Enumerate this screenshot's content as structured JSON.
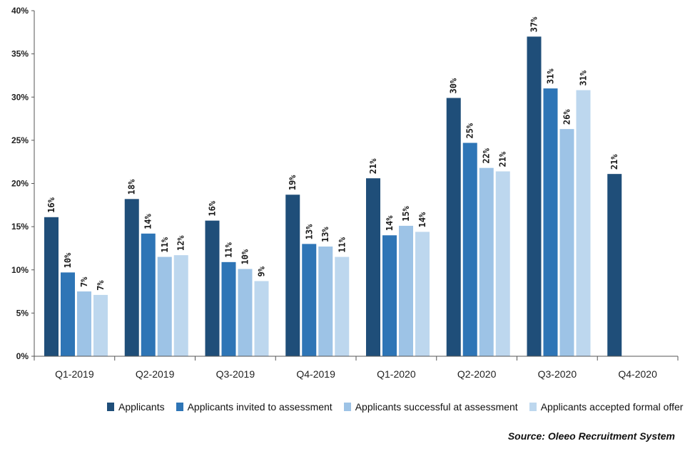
{
  "chart_data": {
    "type": "bar",
    "categories": [
      "Q1-2019",
      "Q2-2019",
      "Q3-2019",
      "Q4-2019",
      "Q1-2020",
      "Q2-2020",
      "Q3-2020",
      "Q4-2020"
    ],
    "series": [
      {
        "name": "Applicants",
        "color": "#1f4e79",
        "values": [
          16.1,
          18.2,
          15.7,
          18.7,
          20.6,
          29.9,
          37.0,
          21.1
        ],
        "labels": [
          "16%",
          "18%",
          "16%",
          "19%",
          "21%",
          "30%",
          "37%",
          "21%"
        ]
      },
      {
        "name": "Applicants invited to assessment",
        "color": "#2e75b6",
        "values": [
          9.7,
          14.2,
          10.9,
          13.0,
          14.0,
          24.7,
          31.0,
          null
        ],
        "labels": [
          "10%",
          "14%",
          "11%",
          "13%",
          "14%",
          "25%",
          "31%",
          ""
        ]
      },
      {
        "name": "Applicants successful at assessment",
        "color": "#9dc3e6",
        "values": [
          7.5,
          11.5,
          10.1,
          12.7,
          15.1,
          21.8,
          26.3,
          null
        ],
        "labels": [
          "7%",
          "11%",
          "10%",
          "13%",
          "15%",
          "22%",
          "26%",
          ""
        ]
      },
      {
        "name": "Applicants accepted formal offer",
        "color": "#bdd7ee",
        "values": [
          7.1,
          11.7,
          8.7,
          11.5,
          14.4,
          21.4,
          30.8,
          null
        ],
        "labels": [
          "7%",
          "12%",
          "9%",
          "11%",
          "14%",
          "21%",
          "31%",
          ""
        ]
      }
    ],
    "yticks": [
      "0%",
      "5%",
      "10%",
      "15%",
      "20%",
      "25%",
      "30%",
      "35%",
      "40%"
    ],
    "ylim": [
      0,
      40
    ],
    "legend_position": "bottom",
    "grid": false
  },
  "source": "Source: Oleeo Recruitment System"
}
